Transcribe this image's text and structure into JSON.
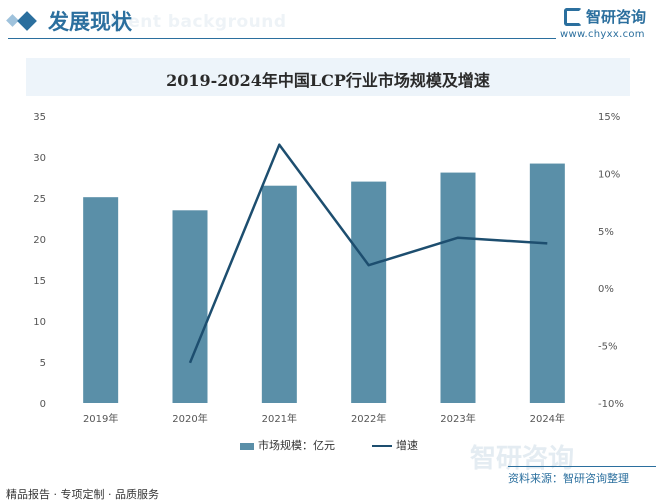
{
  "header": {
    "section_title": "发展现状",
    "bg_text": "ment background",
    "logo_text": "智研咨询",
    "logo_url": "www.chyxx.com"
  },
  "chart_data": {
    "type": "bar",
    "title": "2019-2024年中国LCP行业市场规模及增速",
    "categories": [
      "2019年",
      "2020年",
      "2021年",
      "2022年",
      "2023年",
      "2024年"
    ],
    "series": [
      {
        "name": "市场规模：亿元",
        "type": "bar",
        "axis": "left",
        "values": [
          25.1,
          23.5,
          26.5,
          27.0,
          28.1,
          29.2
        ],
        "color": "#5a8fa8"
      },
      {
        "name": "增速",
        "type": "line",
        "axis": "right",
        "values": [
          null,
          -6.5,
          12.5,
          2.0,
          4.4,
          3.9
        ],
        "color": "#1d4e6f"
      }
    ],
    "ylim_left": [
      0,
      35
    ],
    "yticks_left": [
      "0",
      "5",
      "10",
      "15",
      "20",
      "25",
      "30",
      "35"
    ],
    "ylim_right": [
      -10,
      15
    ],
    "yticks_right": [
      "-10%",
      "-5%",
      "0%",
      "5%",
      "10%",
      "15%"
    ],
    "legend_position": "bottom",
    "grid": false
  },
  "footer": {
    "left_text": "精品报告 · 专项定制 · 品质服务",
    "source": "资料来源：智研咨询整理",
    "big_logo": "智研咨询"
  }
}
